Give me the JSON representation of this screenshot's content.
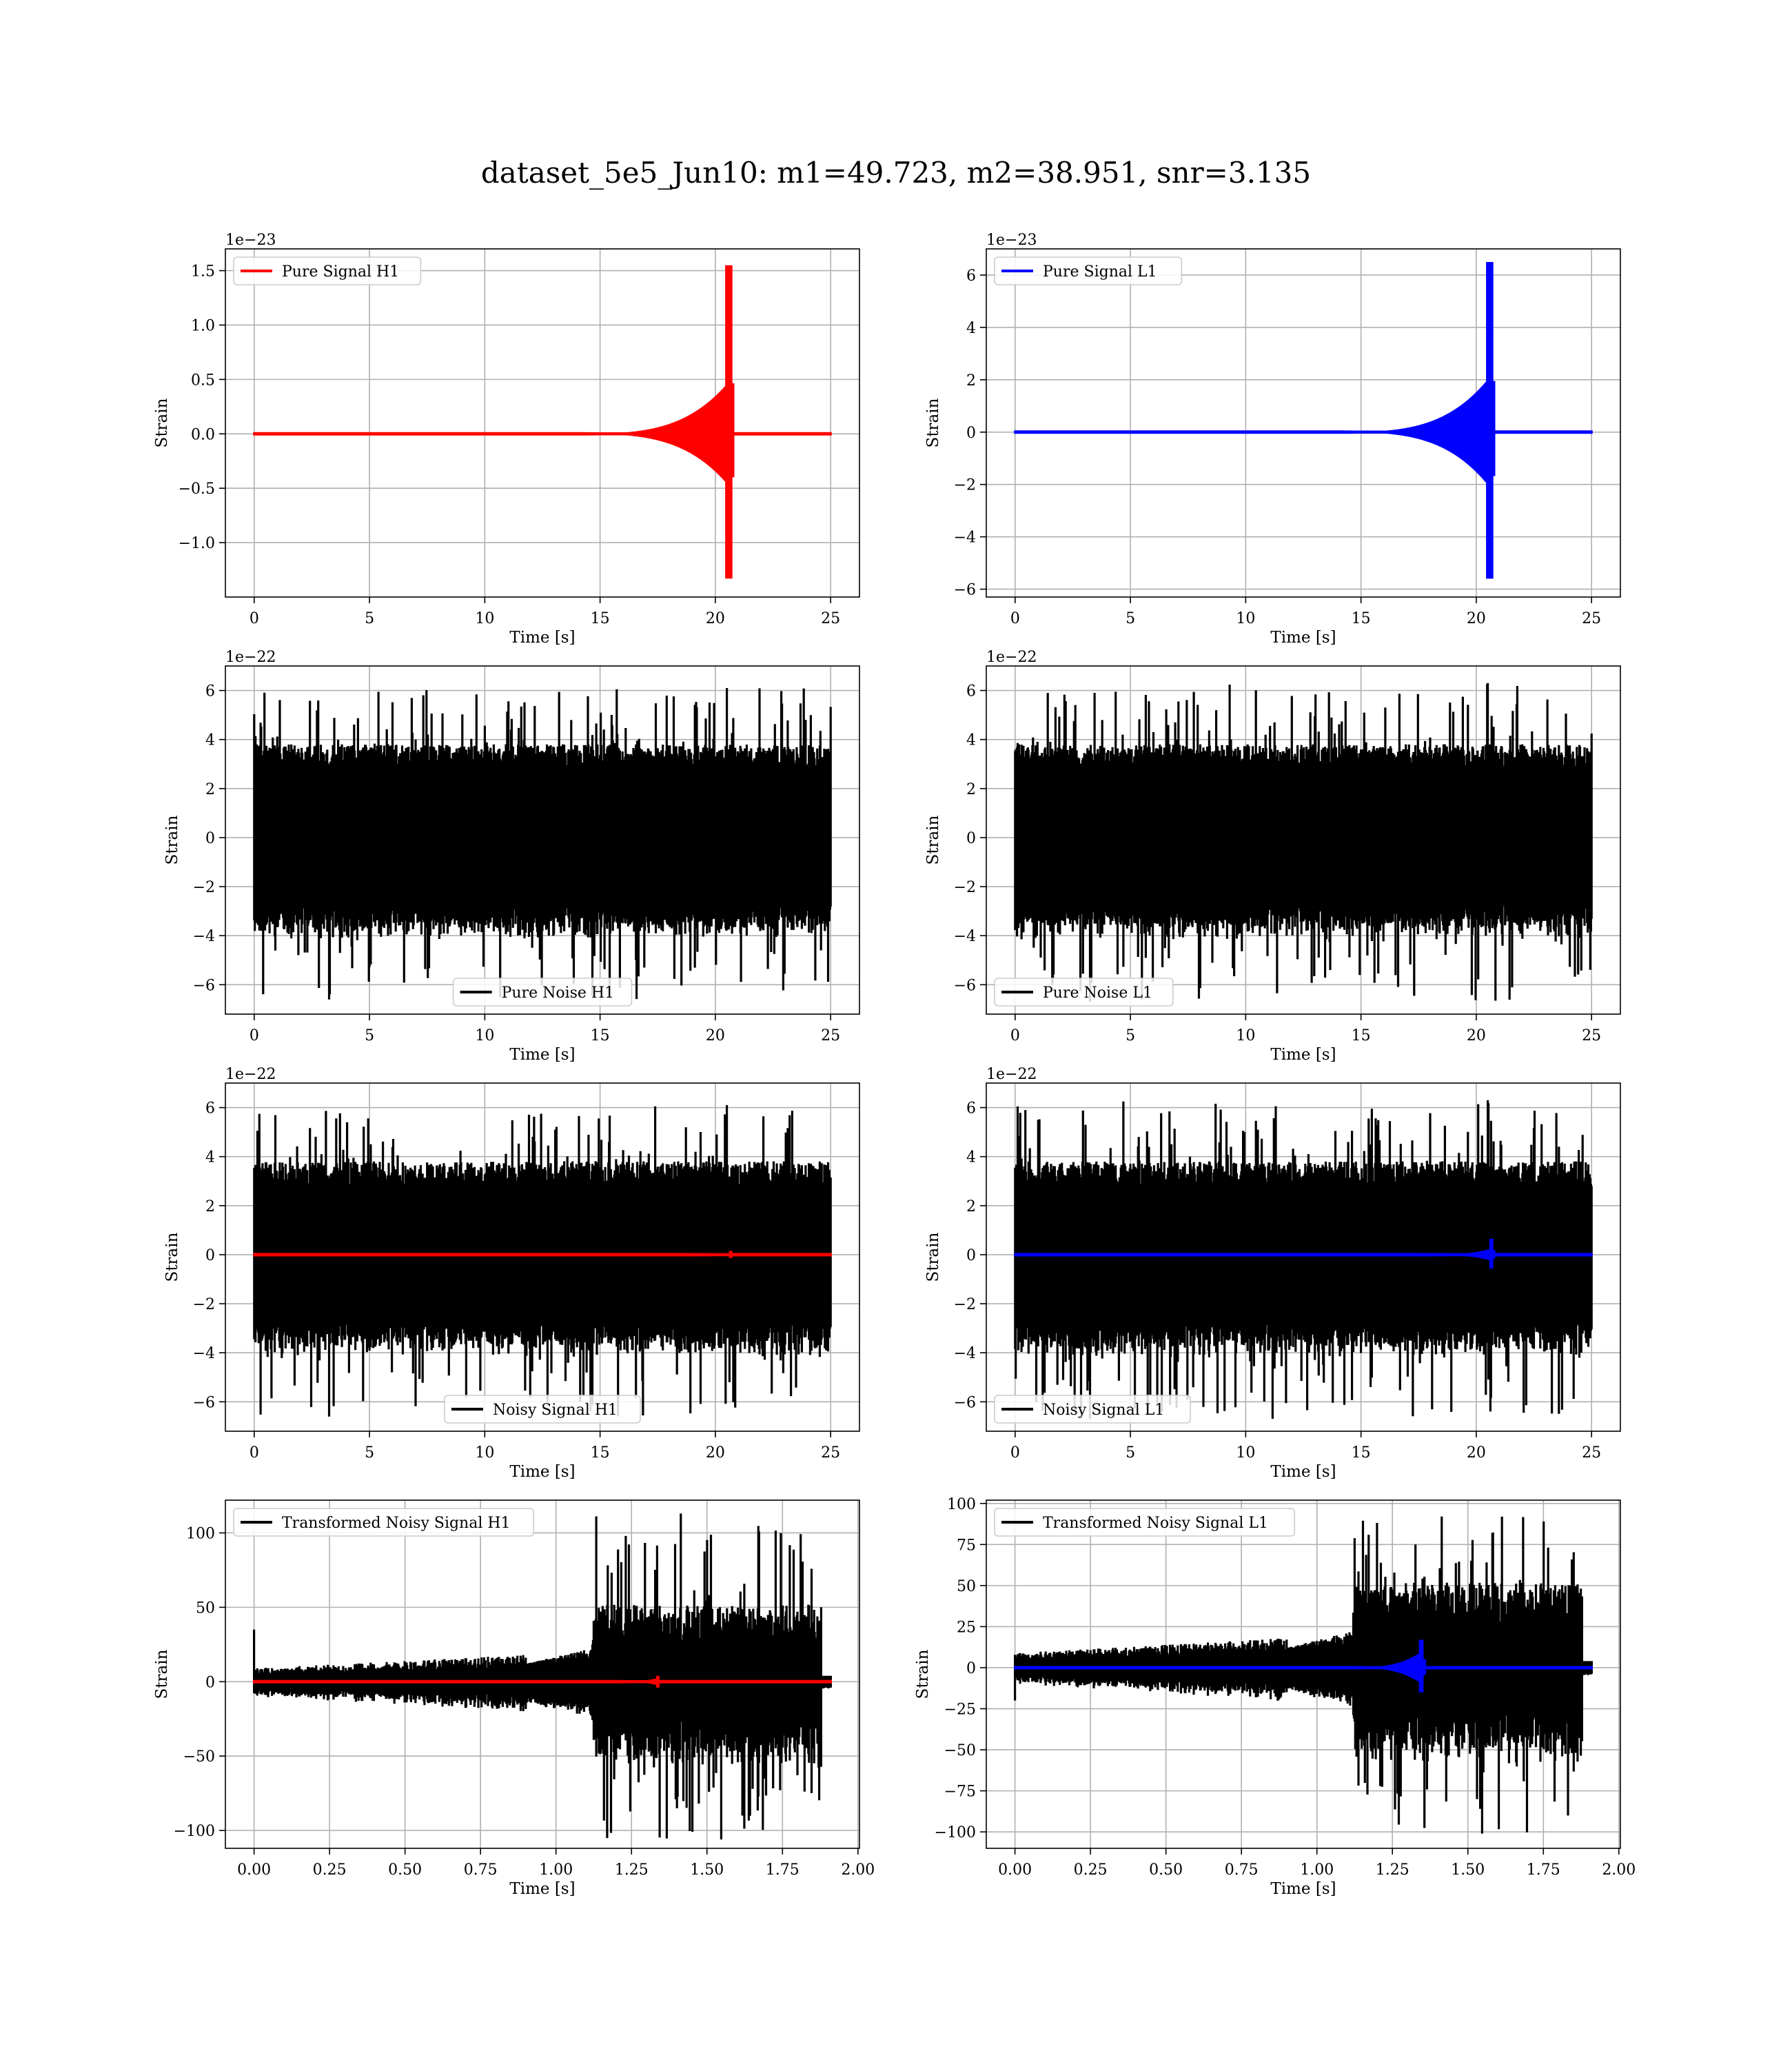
{
  "figure": {
    "title": "dataset_5e5_Jun10: m1=49.723, m2=38.951, snr=3.135"
  },
  "colors": {
    "h1_signal": "#ff0000",
    "l1_signal": "#0000ff",
    "noise": "#000000",
    "grid": "#b0b0b0"
  },
  "chart_data": [
    {
      "id": "pure-signal-h1",
      "type": "line",
      "xlabel": "Time [s]",
      "ylabel": "Strain",
      "offset_text": "1e−23",
      "xlim": [
        -1.25,
        26.25
      ],
      "ylim": [
        -1.5,
        1.7
      ],
      "xticks": [
        0,
        5,
        10,
        15,
        20,
        25
      ],
      "xtick_labels": [
        "0",
        "5",
        "10",
        "15",
        "20",
        "25"
      ],
      "yticks": [
        -1.0,
        -0.5,
        0.0,
        0.5,
        1.0,
        1.5
      ],
      "ytick_labels": [
        "−1.0",
        "−0.5",
        "0.0",
        "0.5",
        "1.0",
        "1.5"
      ],
      "grid": true,
      "legend_position": "upper left",
      "series": [
        {
          "name": "Pure Signal H1",
          "kind": "chirp",
          "color": "#ff0000",
          "x_start": 0,
          "x_end": 25,
          "onset": 13,
          "merger": 20.7,
          "ringdown": 20.8,
          "peak_upper": 1.55,
          "peak_lower": -1.33,
          "pre_merger_amp": 0.5
        }
      ]
    },
    {
      "id": "pure-signal-l1",
      "type": "line",
      "xlabel": "Time [s]",
      "ylabel": "Strain",
      "offset_text": "1e−23",
      "xlim": [
        -1.25,
        26.25
      ],
      "ylim": [
        -6.3,
        7.0
      ],
      "xticks": [
        0,
        5,
        10,
        15,
        20,
        25
      ],
      "xtick_labels": [
        "0",
        "5",
        "10",
        "15",
        "20",
        "25"
      ],
      "yticks": [
        -6,
        -4,
        -2,
        0,
        2,
        4,
        6
      ],
      "ytick_labels": [
        "−6",
        "−4",
        "−2",
        "0",
        "2",
        "4",
        "6"
      ],
      "grid": true,
      "legend_position": "upper left",
      "series": [
        {
          "name": "Pure Signal L1",
          "kind": "chirp",
          "color": "#0000ff",
          "x_start": 0,
          "x_end": 25,
          "onset": 13,
          "merger": 20.7,
          "ringdown": 20.8,
          "peak_upper": 6.5,
          "peak_lower": -5.6,
          "pre_merger_amp": 2.2
        }
      ]
    },
    {
      "id": "pure-noise-h1",
      "type": "line",
      "xlabel": "Time [s]",
      "ylabel": "Strain",
      "offset_text": "1e−22",
      "xlim": [
        -1.25,
        26.25
      ],
      "ylim": [
        -7.2,
        7.0
      ],
      "xticks": [
        0,
        5,
        10,
        15,
        20,
        25
      ],
      "xtick_labels": [
        "0",
        "5",
        "10",
        "15",
        "20",
        "25"
      ],
      "yticks": [
        -6,
        -4,
        -2,
        0,
        2,
        4,
        6
      ],
      "ytick_labels": [
        "−6",
        "−4",
        "−2",
        "0",
        "2",
        "4",
        "6"
      ],
      "grid": true,
      "legend_position": "lower center",
      "series": [
        {
          "name": "Pure Noise H1",
          "kind": "noise",
          "color": "#000000",
          "x_start": 0,
          "x_end": 25,
          "band": 3.4,
          "spike_max": 6.1,
          "spike_min": -6.6
        }
      ]
    },
    {
      "id": "pure-noise-l1",
      "type": "line",
      "xlabel": "Time [s]",
      "ylabel": "Strain",
      "offset_text": "1e−22",
      "xlim": [
        -1.25,
        26.25
      ],
      "ylim": [
        -7.2,
        7.0
      ],
      "xticks": [
        0,
        5,
        10,
        15,
        20,
        25
      ],
      "xtick_labels": [
        "0",
        "5",
        "10",
        "15",
        "20",
        "25"
      ],
      "yticks": [
        -6,
        -4,
        -2,
        0,
        2,
        4,
        6
      ],
      "ytick_labels": [
        "−6",
        "−4",
        "−2",
        "0",
        "2",
        "4",
        "6"
      ],
      "grid": true,
      "legend_position": "lower left",
      "series": [
        {
          "name": "Pure Noise L1",
          "kind": "noise",
          "color": "#000000",
          "x_start": 0,
          "x_end": 25,
          "band": 3.4,
          "spike_max": 6.3,
          "spike_min": -6.7
        }
      ]
    },
    {
      "id": "noisy-signal-h1",
      "type": "line",
      "xlabel": "Time [s]",
      "ylabel": "Strain",
      "offset_text": "1e−22",
      "xlim": [
        -1.25,
        26.25
      ],
      "ylim": [
        -7.2,
        7.0
      ],
      "xticks": [
        0,
        5,
        10,
        15,
        20,
        25
      ],
      "xtick_labels": [
        "0",
        "5",
        "10",
        "15",
        "20",
        "25"
      ],
      "yticks": [
        -6,
        -4,
        -2,
        0,
        2,
        4,
        6
      ],
      "ytick_labels": [
        "−6",
        "−4",
        "−2",
        "0",
        "2",
        "4",
        "6"
      ],
      "grid": true,
      "legend_position": "lower center",
      "series": [
        {
          "name": "Noisy Signal H1",
          "kind": "noise",
          "color": "#000000",
          "x_start": 0,
          "x_end": 25,
          "band": 3.4,
          "spike_max": 6.1,
          "spike_min": -6.6
        },
        {
          "name": "",
          "kind": "chirp",
          "color": "#ff0000",
          "x_start": 0,
          "x_end": 25,
          "onset": 18,
          "merger": 20.7,
          "ringdown": 20.8,
          "peak_upper": 0.16,
          "peak_lower": -0.14,
          "pre_merger_amp": 0.06
        }
      ]
    },
    {
      "id": "noisy-signal-l1",
      "type": "line",
      "xlabel": "Time [s]",
      "ylabel": "Strain",
      "offset_text": "1e−22",
      "xlim": [
        -1.25,
        26.25
      ],
      "ylim": [
        -7.2,
        7.0
      ],
      "xticks": [
        0,
        5,
        10,
        15,
        20,
        25
      ],
      "xtick_labels": [
        "0",
        "5",
        "10",
        "15",
        "20",
        "25"
      ],
      "yticks": [
        -6,
        -4,
        -2,
        0,
        2,
        4,
        6
      ],
      "ytick_labels": [
        "−6",
        "−4",
        "−2",
        "0",
        "2",
        "4",
        "6"
      ],
      "grid": true,
      "legend_position": "lower left",
      "series": [
        {
          "name": "Noisy Signal L1",
          "kind": "noise",
          "color": "#000000",
          "x_start": 0,
          "x_end": 25,
          "band": 3.4,
          "spike_max": 6.3,
          "spike_min": -6.7
        },
        {
          "name": "",
          "kind": "chirp",
          "color": "#0000ff",
          "x_start": 0,
          "x_end": 25,
          "onset": 17,
          "merger": 20.7,
          "ringdown": 20.8,
          "peak_upper": 0.65,
          "peak_lower": -0.56,
          "pre_merger_amp": 0.25
        }
      ]
    },
    {
      "id": "transformed-noisy-signal-h1",
      "type": "line",
      "xlabel": "Time [s]",
      "ylabel": "Strain",
      "offset_text": "",
      "xlim": [
        -0.095,
        2.005
      ],
      "ylim": [
        -112,
        122
      ],
      "xticks": [
        0.0,
        0.25,
        0.5,
        0.75,
        1.0,
        1.25,
        1.5,
        1.75,
        2.0
      ],
      "xtick_labels": [
        "0.00",
        "0.25",
        "0.50",
        "0.75",
        "1.00",
        "1.25",
        "1.50",
        "1.75",
        "2.00"
      ],
      "yticks": [
        -100,
        -50,
        0,
        50,
        100
      ],
      "ytick_labels": [
        "−100",
        "−50",
        "0",
        "50",
        "100"
      ],
      "grid": true,
      "legend_position": "upper left",
      "series": [
        {
          "name": "Transformed Noisy Signal H1",
          "kind": "transformed",
          "color": "#000000",
          "x_start": 0,
          "x_end": 1.91,
          "rise_start": 0.9,
          "jump": 1.12,
          "end_drop": 1.88,
          "early_band": 6,
          "late_band": 45,
          "spike_max": 113,
          "spike_min": -106,
          "initial_spike": 35
        },
        {
          "name": "",
          "kind": "chirp",
          "color": "#ff0000",
          "x_start": 0,
          "x_end": 1.91,
          "onset": 1.15,
          "merger": 1.34,
          "ringdown": 1.35,
          "peak_upper": 4,
          "peak_lower": -4,
          "pre_merger_amp": 2.5
        }
      ]
    },
    {
      "id": "transformed-noisy-signal-l1",
      "type": "line",
      "xlabel": "Time [s]",
      "ylabel": "Strain",
      "offset_text": "",
      "xlim": [
        -0.095,
        2.005
      ],
      "ylim": [
        -110,
        102
      ],
      "xticks": [
        0.0,
        0.25,
        0.5,
        0.75,
        1.0,
        1.25,
        1.5,
        1.75,
        2.0
      ],
      "xtick_labels": [
        "0.00",
        "0.25",
        "0.50",
        "0.75",
        "1.00",
        "1.25",
        "1.50",
        "1.75",
        "2.00"
      ],
      "yticks": [
        -100,
        -75,
        -50,
        -25,
        0,
        25,
        50,
        75,
        100
      ],
      "ytick_labels": [
        "−100",
        "−75",
        "−50",
        "−25",
        "0",
        "25",
        "50",
        "75",
        "100"
      ],
      "grid": true,
      "legend_position": "upper left",
      "series": [
        {
          "name": "Transformed Noisy Signal L1",
          "kind": "transformed",
          "color": "#000000",
          "x_start": 0,
          "x_end": 1.91,
          "rise_start": 0.9,
          "jump": 1.12,
          "end_drop": 1.88,
          "early_band": 6,
          "late_band": 45,
          "spike_max": 92,
          "spike_min": -101,
          "initial_spike": -20
        },
        {
          "name": "",
          "kind": "chirp",
          "color": "#0000ff",
          "x_start": 0,
          "x_end": 1.91,
          "onset": 1.05,
          "merger": 1.35,
          "ringdown": 1.36,
          "peak_upper": 17,
          "peak_lower": -15,
          "pre_merger_amp": 10
        }
      ]
    }
  ]
}
